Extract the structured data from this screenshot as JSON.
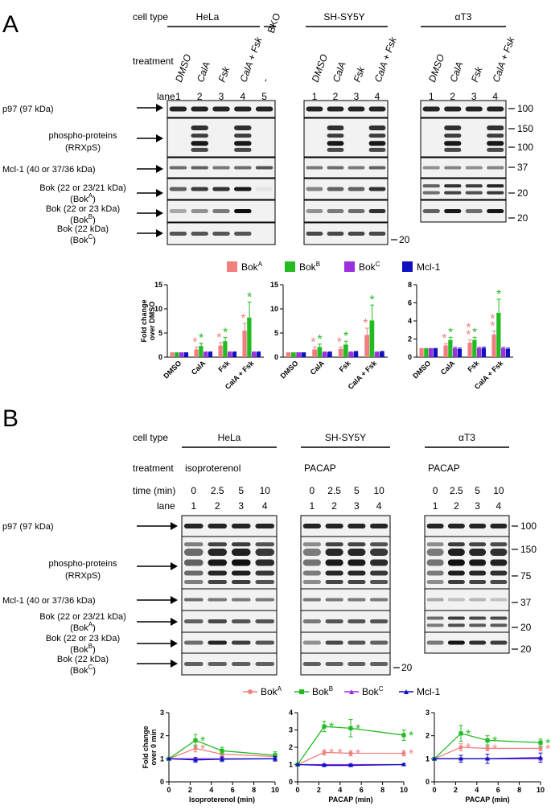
{
  "panel_a": {
    "letter": "A",
    "cell_type_label": "cell type",
    "treatment_label": "treatment",
    "lane_label": "lane",
    "groups": [
      {
        "name": "HeLa",
        "treatments": [
          "DMSO",
          "CalA",
          "Fsk",
          "CalA + Fsk",
          "-"
        ],
        "lanes": [
          "1",
          "2",
          "3",
          "4",
          "5"
        ]
      },
      {
        "name": "BKO"
      },
      {
        "name": "SH-SY5Y",
        "treatments": [
          "DMSO",
          "CalA",
          "Fsk",
          "CalA + Fsk"
        ],
        "lanes": [
          "1",
          "2",
          "3",
          "4"
        ]
      },
      {
        "name": "αT3",
        "treatments": [
          "DMSO",
          "CalA",
          "Fsk",
          "CalA + Fsk"
        ],
        "lanes": [
          "1",
          "2",
          "3",
          "4"
        ]
      }
    ],
    "rows": [
      {
        "line1": "p97 (97 kDa)",
        "line2": ""
      },
      {
        "line1": "phospho-proteins",
        "line2": "(RRXpS)"
      },
      {
        "line1": "Mcl-1 (40 or 37/36 kDa)",
        "line2": ""
      },
      {
        "line1": "Bok (22 or 23/21 kDa)",
        "line2": "(Bok",
        "sup": "A",
        "close": ")"
      },
      {
        "line1": "Bok (22 or 23 kDa)",
        "line2": "(Bok",
        "sup": "B",
        "close": ")"
      },
      {
        "line1": "Bok (22 kDa)",
        "line2": "(Bok",
        "sup": "C",
        "close": ")"
      }
    ],
    "mw_markers": [
      "100",
      "150",
      "100",
      "37",
      "20",
      "20",
      "20"
    ]
  },
  "panel_b": {
    "letter": "B",
    "cell_type_label": "cell type",
    "treatment_label": "treatment",
    "time_label": "time (min)",
    "lane_label": "lane",
    "groups": [
      {
        "name": "HeLa",
        "treatment": "isoproterenol",
        "times": [
          "0",
          "2.5",
          "5",
          "10"
        ],
        "lanes": [
          "1",
          "2",
          "3",
          "4"
        ]
      },
      {
        "name": "SH-SY5Y",
        "treatment": "PACAP",
        "times": [
          "0",
          "2.5",
          "5",
          "10"
        ],
        "lanes": [
          "1",
          "2",
          "3",
          "4"
        ]
      },
      {
        "name": "αT3",
        "treatment": "PACAP",
        "times": [
          "0",
          "2.5",
          "5",
          "10"
        ],
        "lanes": [
          "1",
          "2",
          "3",
          "4"
        ]
      }
    ],
    "rows": [
      {
        "line1": "p97 (97 kDa)",
        "line2": ""
      },
      {
        "line1": "phospho-proteins",
        "line2": "(RRXpS)"
      },
      {
        "line1": "Mcl-1 (40 or 37/36 kDa)",
        "line2": ""
      },
      {
        "line1": "Bok (22 or 23/21 kDa)",
        "line2": "(Bok",
        "sup": "A",
        "close": ")"
      },
      {
        "line1": "Bok (22 or 23 kDa)",
        "line2": "(Bok",
        "sup": "B",
        "close": ")"
      },
      {
        "line1": "Bok (22 kDa)",
        "line2": "(Bok",
        "sup": "C",
        "close": ")"
      }
    ],
    "mw_markers": [
      "100",
      "150",
      "75",
      "37",
      "20",
      "20",
      "20"
    ]
  },
  "colors": {
    "bokA": "#f08080",
    "bokB": "#22bb22",
    "bokC": "#9b30e0",
    "mcl1": "#1010c0"
  },
  "chart_data": [
    {
      "type": "bar",
      "ylabel": "Fold change over DMSO",
      "categories": [
        "DMSO",
        "CalA",
        "Fsk",
        "CalA + Fsk"
      ],
      "ylim": [
        0,
        15
      ],
      "yticks": [
        "0",
        "5",
        "10",
        "15"
      ],
      "legend": [
        {
          "name": "Bok",
          "sup": "A"
        },
        {
          "name": "Bok",
          "sup": "B"
        },
        {
          "name": "Bok",
          "sup": "C"
        },
        {
          "name": "Mcl-1",
          "sup": ""
        }
      ],
      "series": [
        {
          "name": "BokA",
          "values": [
            1,
            1.6,
            2.4,
            5.5
          ],
          "err": [
            0,
            0.5,
            0.6,
            1.5
          ]
        },
        {
          "name": "BokB",
          "values": [
            1,
            2.3,
            3.3,
            8.2
          ],
          "err": [
            0,
            0.6,
            0.8,
            3.2
          ]
        },
        {
          "name": "BokC",
          "values": [
            1,
            1.0,
            1.0,
            1.0
          ],
          "err": [
            0,
            0.1,
            0.1,
            0.1
          ]
        },
        {
          "name": "Mcl-1",
          "values": [
            1,
            1.0,
            1.0,
            1.0
          ],
          "err": [
            0,
            0.1,
            0.1,
            0.1
          ]
        }
      ],
      "stars": [
        [
          1,
          0
        ],
        [
          1,
          1
        ],
        [
          2,
          0
        ],
        [
          2,
          1
        ],
        [
          3,
          0
        ],
        [
          3,
          1
        ]
      ]
    },
    {
      "type": "bar",
      "categories": [
        "DMSO",
        "CalA",
        "Fsk",
        "CalA + Fsk"
      ],
      "ylim": [
        0,
        15
      ],
      "yticks": [
        "0",
        "5",
        "10",
        "15"
      ],
      "series": [
        {
          "name": "BokA",
          "values": [
            1,
            1.6,
            1.7,
            4.6
          ],
          "err": [
            0,
            0.5,
            0.4,
            1.4
          ]
        },
        {
          "name": "BokB",
          "values": [
            1,
            2.1,
            2.6,
            7.6
          ],
          "err": [
            0,
            0.6,
            0.7,
            3.2
          ]
        },
        {
          "name": "BokC",
          "values": [
            1,
            1.0,
            1.0,
            1.0
          ],
          "err": [
            0,
            0.1,
            0.1,
            0.1
          ]
        },
        {
          "name": "Mcl-1",
          "values": [
            1,
            1.0,
            1.1,
            1.1
          ],
          "err": [
            0,
            0.1,
            0.1,
            0.1
          ]
        }
      ],
      "stars": [
        [
          1,
          0
        ],
        [
          1,
          1
        ],
        [
          2,
          0
        ],
        [
          2,
          1
        ],
        [
          3,
          0
        ],
        [
          3,
          1
        ]
      ]
    },
    {
      "type": "bar",
      "categories": [
        "DMSO",
        "CalA",
        "Fsk",
        "CalA + Fsk"
      ],
      "ylim": [
        0,
        8
      ],
      "yticks": [
        "0",
        "2",
        "4",
        "6",
        "8"
      ],
      "series": [
        {
          "name": "BokA",
          "values": [
            1,
            1.3,
            1.6,
            2.5
          ],
          "err": [
            0,
            0.2,
            0.3,
            0.4
          ]
        },
        {
          "name": "BokB",
          "values": [
            1,
            1.9,
            1.9,
            4.9
          ],
          "err": [
            0,
            0.3,
            0.3,
            1.5
          ]
        },
        {
          "name": "BokC",
          "values": [
            1,
            1.0,
            1.0,
            1.0
          ],
          "err": [
            0,
            0.1,
            0.1,
            0.1
          ]
        },
        {
          "name": "Mcl-1",
          "values": [
            1,
            0.9,
            1.0,
            0.9
          ],
          "err": [
            0,
            0.1,
            0.1,
            0.1
          ]
        }
      ],
      "stars": [
        [
          1,
          0
        ],
        [
          1,
          1
        ],
        [
          2,
          0
        ],
        [
          2,
          0
        ],
        [
          2,
          1
        ],
        [
          3,
          0
        ],
        [
          3,
          0
        ],
        [
          3,
          1
        ]
      ]
    },
    {
      "type": "line",
      "ylabel": "Fold change over 0 min",
      "xlabel": "Isoproterenol (min)",
      "x": [
        0,
        2.5,
        5,
        10
      ],
      "xlim": [
        0,
        10
      ],
      "xticks": [
        "0",
        "2",
        "4",
        "6",
        "8",
        "10"
      ],
      "ylim": [
        0,
        3
      ],
      "yticks": [
        "0",
        "1",
        "2",
        "3"
      ],
      "legend": [
        {
          "name": "Bok",
          "sup": "A"
        },
        {
          "name": "Bok",
          "sup": "B"
        },
        {
          "name": "Bok",
          "sup": "C"
        },
        {
          "name": "Mcl-1",
          "sup": ""
        }
      ],
      "series": [
        {
          "name": "BokA",
          "values": [
            1,
            1.45,
            1.2,
            1.1
          ],
          "err": [
            0,
            0.15,
            0.1,
            0.1
          ]
        },
        {
          "name": "BokB",
          "values": [
            1,
            1.8,
            1.35,
            1.15
          ],
          "err": [
            0,
            0.25,
            0.15,
            0.15
          ]
        },
        {
          "name": "BokC",
          "values": [
            1,
            1.0,
            1.0,
            1.0
          ],
          "err": [
            0,
            0.05,
            0.05,
            0.05
          ]
        },
        {
          "name": "Mcl-1",
          "values": [
            1,
            0.95,
            0.98,
            1.0
          ],
          "err": [
            0,
            0.1,
            0.1,
            0.1
          ]
        }
      ],
      "stars": [
        [
          2.5,
          1.45,
          "A"
        ],
        [
          2.5,
          1.8,
          "B"
        ]
      ]
    },
    {
      "type": "line",
      "xlabel": "PACAP (min)",
      "x": [
        0,
        2.5,
        5,
        10
      ],
      "xlim": [
        0,
        10
      ],
      "xticks": [
        "0",
        "2",
        "4",
        "6",
        "8",
        "10"
      ],
      "ylim": [
        0,
        4
      ],
      "yticks": [
        "0",
        "1",
        "2",
        "3",
        "4"
      ],
      "series": [
        {
          "name": "BokA",
          "values": [
            1,
            1.7,
            1.65,
            1.65
          ],
          "err": [
            0,
            0.15,
            0.15,
            0.15
          ]
        },
        {
          "name": "BokB",
          "values": [
            1,
            3.2,
            3.1,
            2.7
          ],
          "err": [
            0,
            0.3,
            0.5,
            0.3
          ]
        },
        {
          "name": "BokC",
          "values": [
            1,
            1.0,
            1.0,
            1.0
          ],
          "err": [
            0,
            0.05,
            0.05,
            0.05
          ]
        },
        {
          "name": "Mcl-1",
          "values": [
            1,
            0.95,
            0.95,
            1.0
          ],
          "err": [
            0,
            0.05,
            0.05,
            0.05
          ]
        }
      ],
      "stars": [
        [
          2.5,
          1.7,
          "A"
        ],
        [
          3.3,
          1.7,
          "A"
        ],
        [
          5,
          1.65,
          "A"
        ],
        [
          10,
          1.65,
          "A"
        ],
        [
          2.5,
          3.2,
          "B"
        ],
        [
          5,
          3.1,
          "B"
        ],
        [
          10,
          2.7,
          "B"
        ]
      ]
    },
    {
      "type": "line",
      "xlabel": "PACAP (min)",
      "x": [
        0,
        2.5,
        5,
        10
      ],
      "xlim": [
        0,
        10
      ],
      "xticks": [
        "0",
        "2",
        "4",
        "6",
        "8",
        "10"
      ],
      "ylim": [
        0,
        3
      ],
      "yticks": [
        "0",
        "1",
        "2",
        "3"
      ],
      "series": [
        {
          "name": "BokA",
          "values": [
            1,
            1.5,
            1.45,
            1.45
          ],
          "err": [
            0,
            0.15,
            0.1,
            0.1
          ]
        },
        {
          "name": "BokB",
          "values": [
            1,
            2.1,
            1.8,
            1.7
          ],
          "err": [
            0,
            0.35,
            0.2,
            0.15
          ]
        },
        {
          "name": "BokC",
          "values": [
            1,
            1.0,
            1.0,
            1.0
          ],
          "err": [
            0,
            0.05,
            0.05,
            0.05
          ]
        },
        {
          "name": "Mcl-1",
          "values": [
            1,
            1.0,
            1.0,
            1.05
          ],
          "err": [
            0,
            0.15,
            0.2,
            0.2
          ]
        }
      ],
      "stars": [
        [
          2.5,
          1.5,
          "A"
        ],
        [
          5,
          1.45,
          "A"
        ],
        [
          10,
          1.45,
          "A"
        ],
        [
          2.5,
          2.1,
          "B"
        ],
        [
          5,
          1.8,
          "B"
        ],
        [
          10,
          1.7,
          "B"
        ]
      ]
    }
  ]
}
